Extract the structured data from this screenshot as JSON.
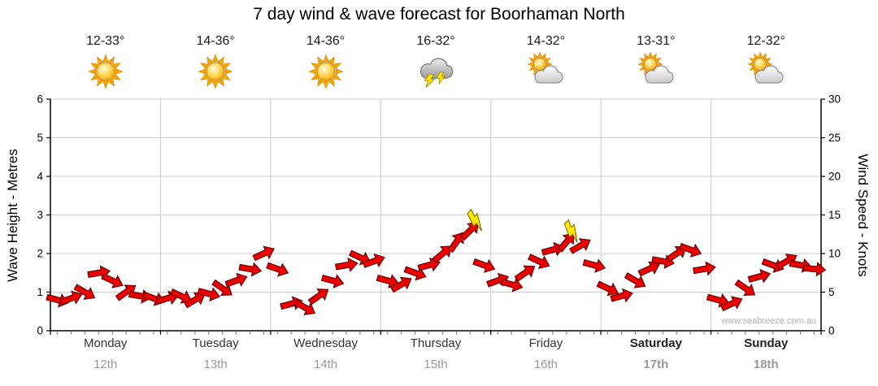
{
  "title": "7 day wind & wave forecast for Boorhaman North",
  "watermark": "www.seabreeze.com.au",
  "forecast": {
    "days": [
      {
        "name": "Monday",
        "date": "12th",
        "temp": "12-33°",
        "icon": "sunny",
        "weekend": false
      },
      {
        "name": "Tuesday",
        "date": "13th",
        "temp": "14-36°",
        "icon": "sunny",
        "weekend": false
      },
      {
        "name": "Wednesday",
        "date": "14th",
        "temp": "14-36°",
        "icon": "sunny",
        "weekend": false
      },
      {
        "name": "Thursday",
        "date": "15th",
        "temp": "16-32°",
        "icon": "thunderstorm",
        "weekend": false
      },
      {
        "name": "Friday",
        "date": "16th",
        "temp": "14-32°",
        "icon": "partly-cloudy",
        "weekend": false
      },
      {
        "name": "Saturday",
        "date": "17th",
        "temp": "13-31°",
        "icon": "partly-cloudy",
        "weekend": true
      },
      {
        "name": "Sunday",
        "date": "18th",
        "temp": "12-32°",
        "icon": "partly-cloudy",
        "weekend": true
      }
    ]
  },
  "chart_data": {
    "type": "scatter",
    "title": "7 day wind & wave forecast for Boorhaman North",
    "ylabel_left": "Wave Height - Metres",
    "ylabel_right": "Wind Speed - Knots",
    "y_left_range": [
      0,
      6
    ],
    "y_right_range": [
      0,
      30
    ],
    "left_ticks": [
      0,
      1,
      2,
      3,
      4,
      5,
      6
    ],
    "right_ticks": [
      0,
      5,
      10,
      15,
      20,
      25,
      30
    ],
    "x_categories": [
      "Monday",
      "Tuesday",
      "Wednesday",
      "Thursday",
      "Friday",
      "Saturday",
      "Sunday"
    ],
    "points_per_day": 8,
    "grid": true,
    "series_name": "Wind speed (red arrows)",
    "wind_speed_knots": [
      4.0,
      4.2,
      5.0,
      7.5,
      6.5,
      5.0,
      4.5,
      4.2,
      4.2,
      4.5,
      4.0,
      4.8,
      5.5,
      6.5,
      8.0,
      10.0,
      8.0,
      3.5,
      3.0,
      4.5,
      6.5,
      8.5,
      9.5,
      9.0,
      6.5,
      6.0,
      7.5,
      8.5,
      10.0,
      11.5,
      13.0,
      8.5,
      6.5,
      6.0,
      7.5,
      9.0,
      10.5,
      11.5,
      11.0,
      8.5,
      5.5,
      4.5,
      6.5,
      8.0,
      9.0,
      10.0,
      10.5,
      8.0,
      4.0,
      3.5,
      5.5,
      7.0,
      8.5,
      9.0,
      8.5,
      8.0
    ],
    "wind_dir_deg": [
      15,
      -20,
      30,
      -10,
      25,
      -35,
      10,
      20,
      -15,
      25,
      -30,
      15,
      35,
      -20,
      10,
      -25,
      20,
      -15,
      30,
      -35,
      15,
      -10,
      25,
      -20,
      15,
      -30,
      20,
      -15,
      -40,
      -55,
      -45,
      20,
      -20,
      15,
      -35,
      25,
      -15,
      -50,
      -30,
      15,
      25,
      -15,
      30,
      -25,
      10,
      -35,
      20,
      -10,
      15,
      -25,
      35,
      -15,
      20,
      -30,
      10,
      5
    ],
    "gusts": [
      {
        "index": 30,
        "knots": 14.2,
        "angle": -50
      },
      {
        "index": 37,
        "knots": 12.8,
        "angle": -45
      }
    ],
    "colors": {
      "arrow": "#e80000",
      "arrow_outline": "#5e0000",
      "gust": "#ffe800",
      "gust_outline": "#7a6000",
      "grid": "#cccccc",
      "axis": "#000000",
      "minor_tick": "#5050c8"
    }
  }
}
